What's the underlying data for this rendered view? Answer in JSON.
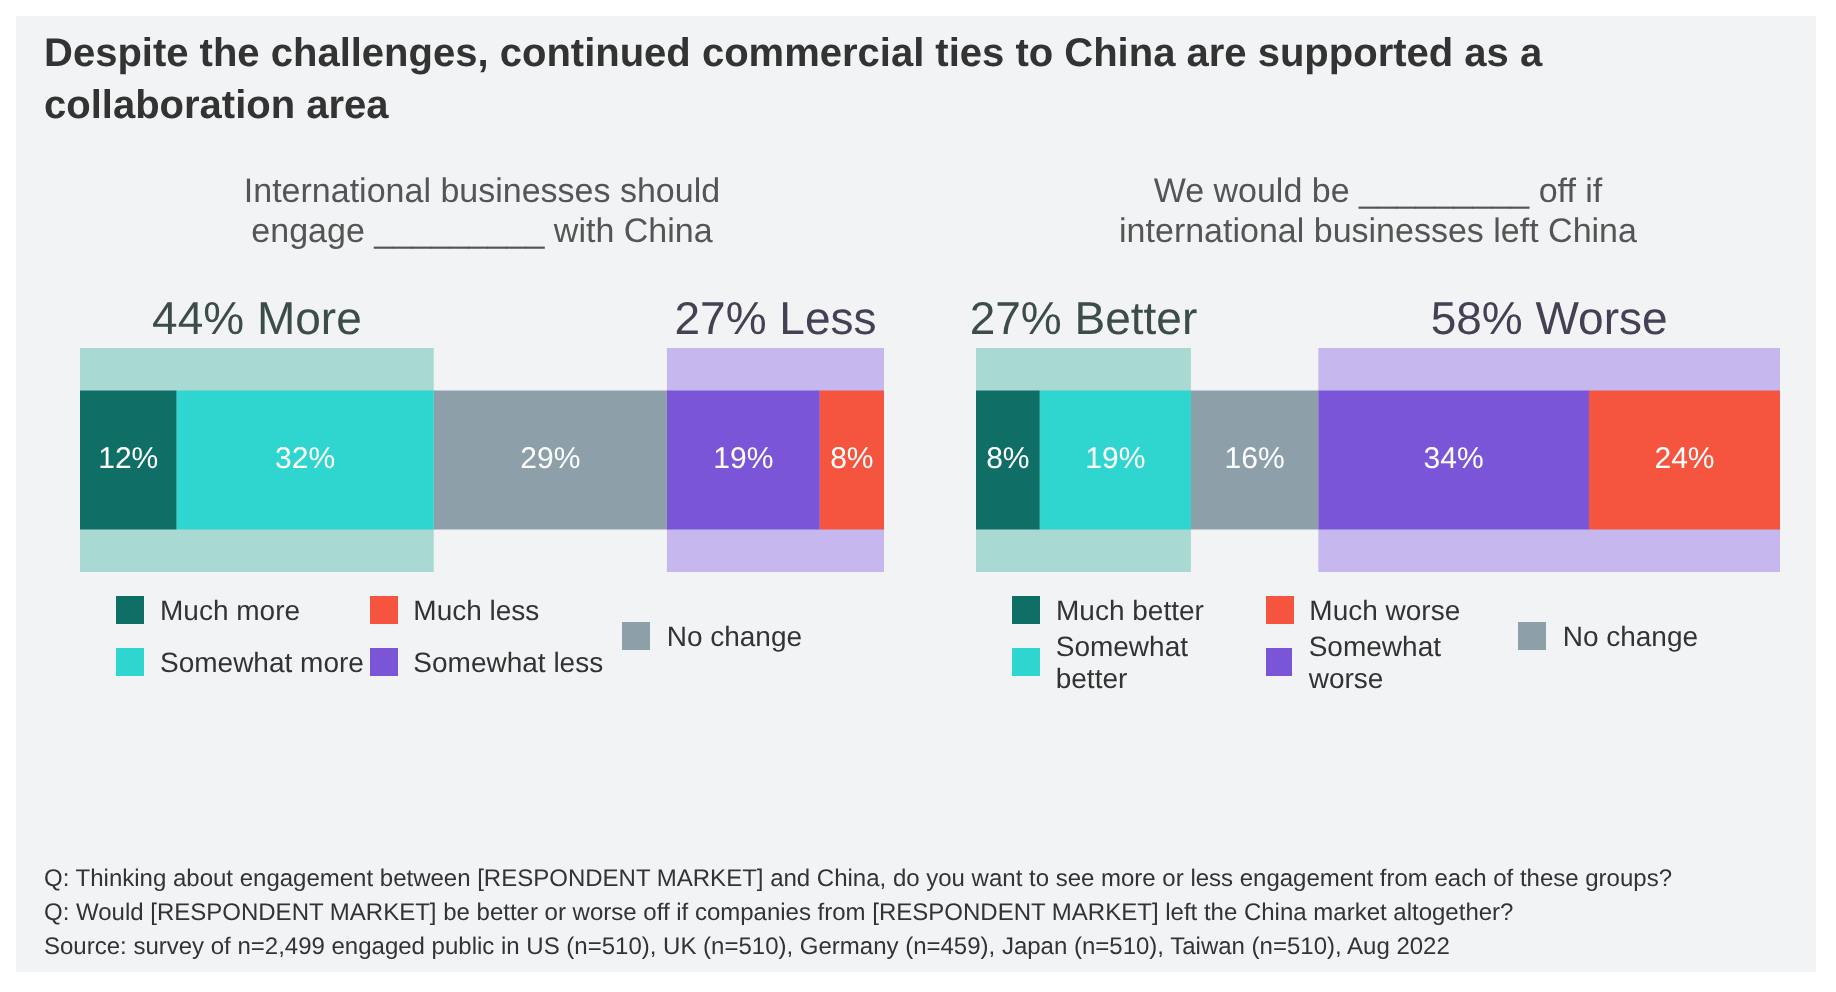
{
  "chart_data": [
    {
      "type": "bar",
      "title": "Despite the challenges, continued commercial ties to China are supported as a collaboration area",
      "subtitle": "International businesses should engage _________ with China",
      "orientation": "horizontal",
      "stacked": true,
      "categories": [
        null
      ],
      "xlim": [
        0,
        100
      ],
      "tick_labels": false,
      "legend": "bottom",
      "series": [
        {
          "name": "Much more",
          "color": "#0f6e66",
          "values": [
            12
          ],
          "value_labels": [
            "12%"
          ]
        },
        {
          "name": "Somewhat more",
          "color": "#2fd6d0",
          "values": [
            32
          ],
          "value_labels": [
            "32%"
          ]
        },
        {
          "name": "No change",
          "color": "#8d9fa8",
          "values": [
            29
          ],
          "value_labels": [
            "29%"
          ]
        },
        {
          "name": "Somewhat less",
          "color": "#7a55d8",
          "values": [
            19
          ],
          "value_labels": [
            "19%"
          ]
        },
        {
          "name": "Much less",
          "color": "#f5543e",
          "values": [
            8
          ],
          "value_labels": [
            "8%"
          ]
        }
      ],
      "bands": [
        {
          "axis": "x",
          "from": 0,
          "to": 44,
          "label": "44% More",
          "color": "#a9d9d3"
        },
        {
          "axis": "x",
          "from": 73,
          "to": 100,
          "label": "27% Less",
          "color": "#c6b8ef"
        }
      ],
      "annotations": [
        "Q: Thinking about engagement between [RESPONDENT MARKET] and China, do you want to see more or less engagement from each of these groups?",
        "Q: Would [RESPONDENT MARKET] be better or worse off if companies from [RESPONDENT MARKET] left the China market altogether?",
        "Source: survey of n=2,499 engaged public in US (n=510), UK (n=510), Germany (n=459), Japan (n=510), Taiwan (n=510), Aug 2022"
      ]
    },
    {
      "type": "bar",
      "subtitle": "We would be _________ off if international businesses left China",
      "orientation": "horizontal",
      "stacked": true,
      "categories": [
        null
      ],
      "xlim": [
        0,
        101
      ],
      "tick_labels": false,
      "legend": "bottom",
      "series": [
        {
          "name": "Much better",
          "color": "#0f6e66",
          "values": [
            8
          ],
          "value_labels": [
            "8%"
          ]
        },
        {
          "name": "Somewhat better",
          "color": "#2fd6d0",
          "values": [
            19
          ],
          "value_labels": [
            "19%"
          ]
        },
        {
          "name": "No change",
          "color": "#8d9fa8",
          "values": [
            16
          ],
          "value_labels": [
            "16%"
          ]
        },
        {
          "name": "Somewhat worse",
          "color": "#7a55d8",
          "values": [
            34
          ],
          "value_labels": [
            "34%"
          ]
        },
        {
          "name": "Much worse",
          "color": "#f5543e",
          "values": [
            24
          ],
          "value_labels": [
            "24%"
          ]
        }
      ],
      "bands": [
        {
          "axis": "x",
          "from": 0,
          "to": 27,
          "label": "27% Better",
          "color": "#a9d9d3"
        },
        {
          "axis": "x",
          "from": 43,
          "to": 101,
          "label": "58% Worse",
          "color": "#c6b8ef"
        }
      ]
    }
  ]
}
